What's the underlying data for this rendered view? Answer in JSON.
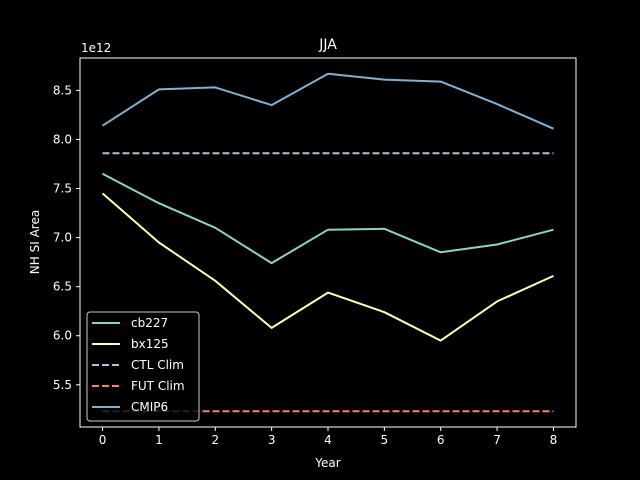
{
  "chart_data": {
    "type": "line",
    "title": "JJA",
    "xlabel": "Year",
    "ylabel": "NH SI Area",
    "y_scale_label": "1e12",
    "x": [
      0,
      1,
      2,
      3,
      4,
      5,
      6,
      7,
      8
    ],
    "xlim": [
      -0.4,
      8.4
    ],
    "ylim": [
      5.07,
      8.83
    ],
    "xticks": [
      "0",
      "1",
      "2",
      "3",
      "4",
      "5",
      "6",
      "7",
      "8"
    ],
    "yticks": [
      5.5,
      6.0,
      6.5,
      7.0,
      7.5,
      8.0,
      8.5
    ],
    "ytick_labels": [
      "5.5",
      "6.0",
      "6.5",
      "7.0",
      "7.5",
      "8.0",
      "8.5"
    ],
    "grid": false,
    "legend_position": "lower-left",
    "series": [
      {
        "name": "cb227",
        "color": "#8dd3c7",
        "style": "solid",
        "values": [
          7.65,
          7.35,
          7.1,
          6.74,
          7.08,
          7.09,
          6.85,
          6.93,
          7.08
        ]
      },
      {
        "name": "bx125",
        "color": "#ffffb3",
        "style": "solid",
        "values": [
          7.45,
          6.95,
          6.56,
          6.08,
          6.44,
          6.24,
          5.95,
          6.35,
          6.61
        ]
      },
      {
        "name": "CTL Clim",
        "color": "#bebada",
        "style": "dashed",
        "values": [
          7.86,
          7.86,
          7.86,
          7.86,
          7.86,
          7.86,
          7.86,
          7.86,
          7.86
        ]
      },
      {
        "name": "FUT Clim",
        "color": "#fb8072",
        "style": "dashed",
        "values": [
          5.23,
          5.23,
          5.23,
          5.23,
          5.23,
          5.23,
          5.23,
          5.23,
          5.23
        ]
      },
      {
        "name": "CMIP6",
        "color": "#80b1d3",
        "style": "solid",
        "values": [
          8.14,
          8.51,
          8.53,
          8.35,
          8.67,
          8.61,
          8.59,
          8.36,
          8.11
        ]
      }
    ]
  }
}
